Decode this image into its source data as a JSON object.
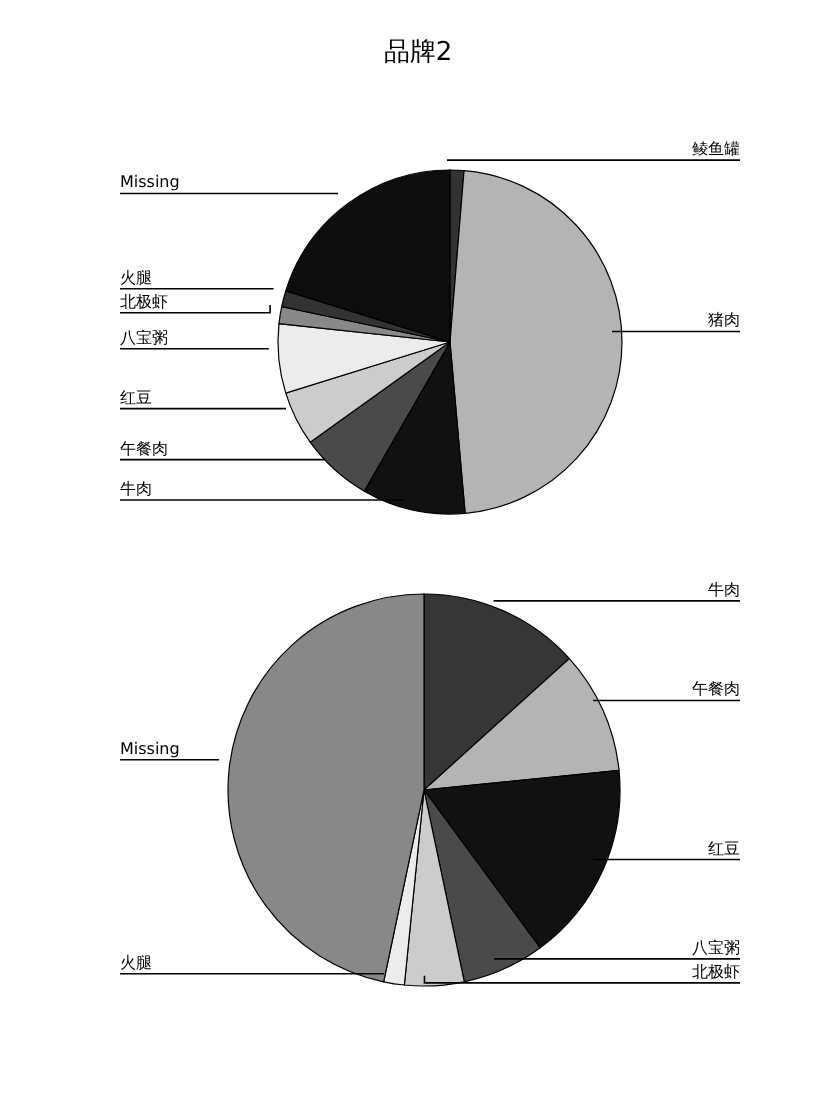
{
  "chart_data": [
    {
      "type": "pie",
      "title": "品牌2",
      "categories": [
        "鲮鱼罐",
        "猪肉",
        "牛肉",
        "午餐肉",
        "红豆",
        "八宝粥",
        "北极虾",
        "火腿",
        "Missing"
      ],
      "values": [
        1.3,
        47.3,
        9.7,
        6.8,
        5.1,
        6.5,
        1.6,
        1.5,
        20.2
      ],
      "colors": [
        "#333333",
        "#b4b4b4",
        "#111111",
        "#4a4a4a",
        "#cccccc",
        "#ececec",
        "#888888",
        "#333333",
        "#0d0d0d"
      ]
    },
    {
      "type": "pie",
      "categories": [
        "牛肉",
        "午餐肉",
        "红豆",
        "八宝粥",
        "北极虾",
        "火腿",
        "Missing"
      ],
      "values": [
        13.3,
        10.1,
        16.5,
        6.8,
        4.9,
        1.7,
        46.7
      ],
      "colors": [
        "#363636",
        "#b4b4b4",
        "#111111",
        "#4a4a4a",
        "#cccccc",
        "#ececec",
        "#888888"
      ]
    }
  ]
}
